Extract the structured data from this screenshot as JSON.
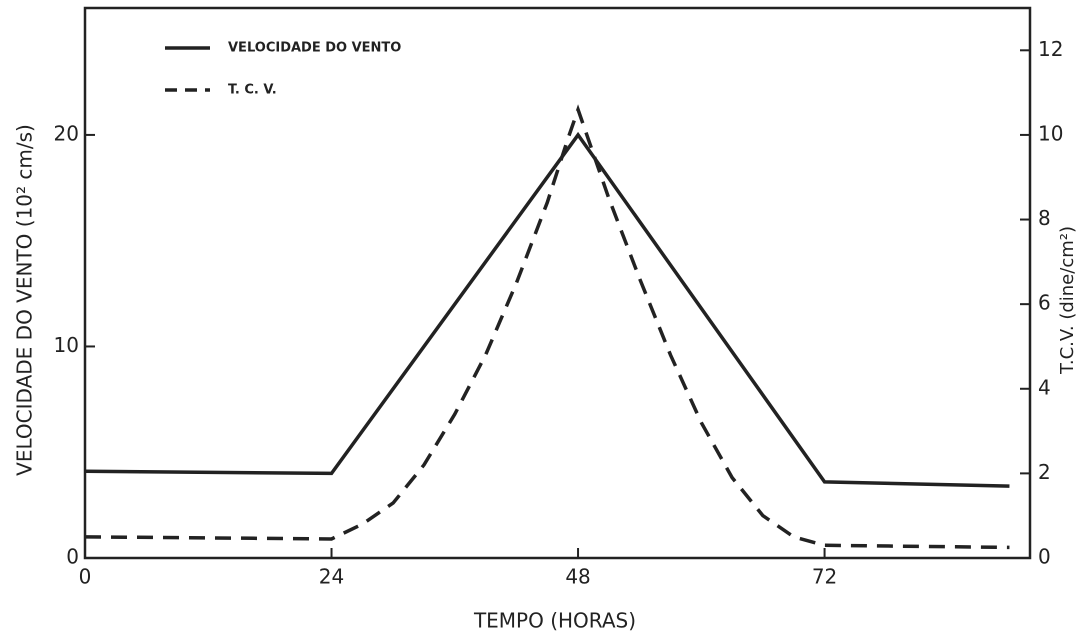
{
  "chart_data": {
    "type": "line",
    "xlabel": "TEMPO (HORAS)",
    "ylabel": "VELOCIDADE DO VENTO (10² cm/s)",
    "y2label": "T.C.V. (dine/cm²)",
    "xlim": [
      0,
      92
    ],
    "xticks": [
      0,
      24,
      48,
      72
    ],
    "ylim": [
      0,
      26
    ],
    "yticks": [
      0,
      10,
      20
    ],
    "y2lim": [
      0,
      13
    ],
    "y2ticks": [
      0,
      2,
      4,
      6,
      8,
      10,
      12
    ],
    "legend": "upper left",
    "series": [
      {
        "name": "VELOCIDADE DO VENTO",
        "color": "#222222",
        "dash": "solid",
        "x": [
          0,
          24,
          48,
          72,
          90
        ],
        "values": [
          4.1,
          4.0,
          20,
          3.6,
          3.4
        ]
      },
      {
        "name": "T. C. V.",
        "color": "#222222",
        "dash": "dashed",
        "axis": "y2",
        "x": [
          0,
          24,
          27,
          30,
          33,
          36,
          39,
          42,
          45,
          47,
          48,
          49,
          51,
          54,
          57,
          60,
          63,
          66,
          69,
          72,
          90
        ],
        "values": [
          0.5,
          0.45,
          0.8,
          1.3,
          2.2,
          3.4,
          4.8,
          6.5,
          8.4,
          9.9,
          10.6,
          9.9,
          8.5,
          6.6,
          4.8,
          3.2,
          1.9,
          1.0,
          0.5,
          0.3,
          0.25
        ]
      }
    ]
  }
}
